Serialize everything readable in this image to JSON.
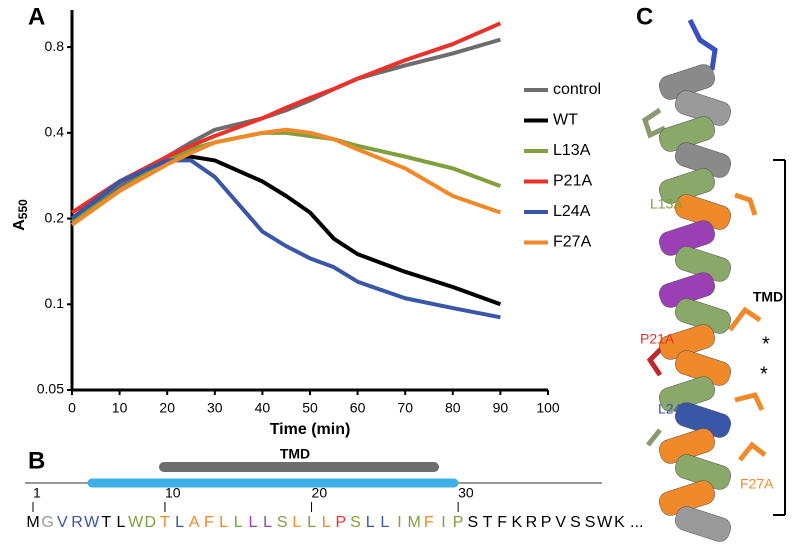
{
  "panel_labels": [
    "A",
    "B",
    "C"
  ],
  "chart_data": {
    "type": "line",
    "yscale": "log",
    "xlabel": "Time (min)",
    "ylabel": "A",
    "ylabel_subscript": "550",
    "x": [
      0,
      10,
      20,
      25,
      30,
      40,
      45,
      50,
      55,
      60,
      70,
      80,
      90
    ],
    "series": [
      {
        "name": "control",
        "color": "#6d6d6d",
        "values": [
          0.2,
          0.26,
          0.33,
          0.37,
          0.41,
          0.45,
          0.48,
          0.52,
          0.57,
          0.62,
          0.69,
          0.76,
          0.85
        ]
      },
      {
        "name": "WT",
        "color": "#000000",
        "values": [
          0.2,
          0.27,
          0.32,
          0.33,
          0.32,
          0.27,
          0.24,
          0.21,
          0.17,
          0.15,
          0.13,
          0.115,
          0.1
        ]
      },
      {
        "name": "L13A",
        "color": "#7fa03c",
        "values": [
          0.195,
          0.25,
          0.32,
          0.35,
          0.37,
          0.4,
          0.4,
          0.39,
          0.38,
          0.36,
          0.33,
          0.3,
          0.26
        ]
      },
      {
        "name": "P21A",
        "color": "#e8322b",
        "values": [
          0.21,
          0.27,
          0.33,
          0.36,
          0.39,
          0.45,
          0.49,
          0.53,
          0.57,
          0.62,
          0.72,
          0.82,
          0.97
        ]
      },
      {
        "name": "L24A",
        "color": "#3a57a7",
        "values": [
          0.2,
          0.27,
          0.32,
          0.32,
          0.28,
          0.18,
          0.16,
          0.145,
          0.135,
          0.12,
          0.105,
          0.097,
          0.09
        ]
      },
      {
        "name": "F27A",
        "color": "#f0892a",
        "values": [
          0.19,
          0.25,
          0.31,
          0.34,
          0.37,
          0.4,
          0.41,
          0.4,
          0.38,
          0.35,
          0.3,
          0.24,
          0.21
        ]
      }
    ],
    "xlim": [
      0,
      100
    ],
    "xticks": [
      0,
      10,
      20,
      30,
      40,
      50,
      60,
      70,
      80,
      90,
      100
    ],
    "ylim": [
      0.05,
      1.08
    ],
    "yticks": [
      0.05,
      0.1,
      0.2,
      0.4,
      0.8
    ]
  },
  "sequence": {
    "region_label": "TMD",
    "ruler_ticks": [
      1,
      10,
      20,
      30
    ],
    "trailing": "...",
    "residues": [
      {
        "letter": "M",
        "color": "#000000"
      },
      {
        "letter": "G",
        "color": "#9a9a9a"
      },
      {
        "letter": "V",
        "color": "#3a57a7"
      },
      {
        "letter": "R",
        "color": "#3a57a7"
      },
      {
        "letter": "W",
        "color": "#3a57a7"
      },
      {
        "letter": "T",
        "color": "#000000"
      },
      {
        "letter": "L",
        "color": "#000000"
      },
      {
        "letter": "W",
        "color": "#7fa03c"
      },
      {
        "letter": "D",
        "color": "#7fa03c"
      },
      {
        "letter": "T",
        "color": "#f0892a"
      },
      {
        "letter": "L",
        "color": "#3a57a7"
      },
      {
        "letter": "A",
        "color": "#f0892a"
      },
      {
        "letter": "F",
        "color": "#f0892a"
      },
      {
        "letter": "L",
        "color": "#f0892a"
      },
      {
        "letter": "L",
        "color": "#7fa03c"
      },
      {
        "letter": "L",
        "color": "#9b3fb5"
      },
      {
        "letter": "L",
        "color": "#9b3fb5"
      },
      {
        "letter": "S",
        "color": "#7fa03c"
      },
      {
        "letter": "L",
        "color": "#f0892a"
      },
      {
        "letter": "L",
        "color": "#7fa03c"
      },
      {
        "letter": "L",
        "color": "#f0892a"
      },
      {
        "letter": "P",
        "color": "#e8322b"
      },
      {
        "letter": "S",
        "color": "#7fa03c"
      },
      {
        "letter": "L",
        "color": "#3a57a7"
      },
      {
        "letter": "L",
        "color": "#3a57a7"
      },
      {
        "letter": "I",
        "color": "#7fa03c"
      },
      {
        "letter": "M",
        "color": "#7fa03c"
      },
      {
        "letter": "F",
        "color": "#f0892a"
      },
      {
        "letter": "I",
        "color": "#7fa03c"
      },
      {
        "letter": "P",
        "color": "#7fa03c"
      },
      {
        "letter": "S",
        "color": "#000000"
      },
      {
        "letter": "T",
        "color": "#000000"
      },
      {
        "letter": "F",
        "color": "#000000"
      },
      {
        "letter": "K",
        "color": "#000000"
      },
      {
        "letter": "R",
        "color": "#000000"
      },
      {
        "letter": "P",
        "color": "#000000"
      },
      {
        "letter": "V",
        "color": "#000000"
      },
      {
        "letter": "S",
        "color": "#000000"
      },
      {
        "letter": "S",
        "color": "#000000"
      },
      {
        "letter": "W",
        "color": "#000000"
      },
      {
        "letter": "K",
        "color": "#000000"
      }
    ]
  },
  "structure": {
    "region_label": "TMD",
    "asterisks": [
      "*",
      "*"
    ],
    "labels": [
      {
        "text": "L13A",
        "color": "#7fa03c"
      },
      {
        "text": "P21A",
        "color": "#e8322b"
      },
      {
        "text": "L24A",
        "color": "#3a57a7"
      },
      {
        "text": "F27A",
        "color": "#f0892a"
      }
    ]
  }
}
